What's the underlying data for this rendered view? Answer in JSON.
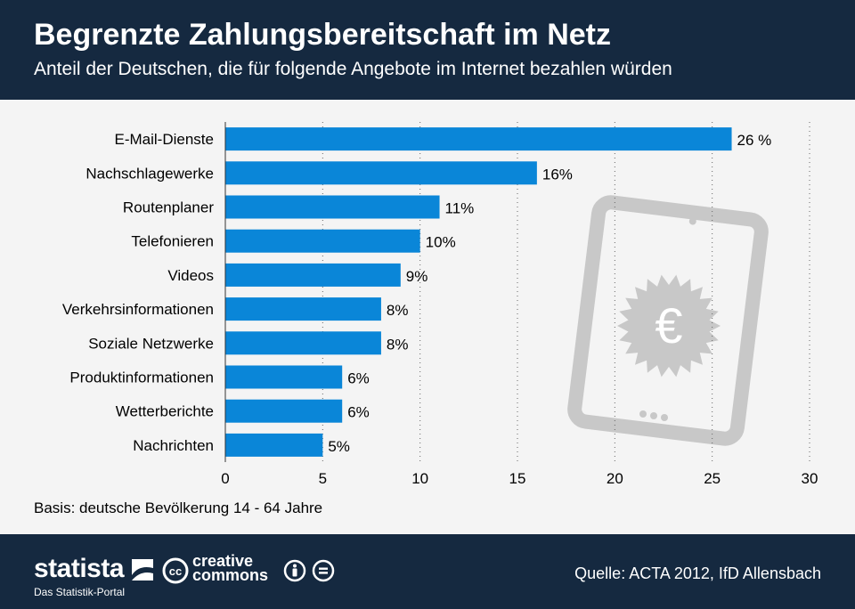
{
  "header": {
    "title": "Begrenzte Zahlungsbereitschaft im Netz",
    "subtitle": "Anteil der Deutschen, die für folgende Angebote im Internet bezahlen würden"
  },
  "chart_data": {
    "type": "bar",
    "orientation": "horizontal",
    "categories": [
      "E-Mail-Dienste",
      "Nachschlagewerke",
      "Routenplaner",
      "Telefonieren",
      "Videos",
      "Verkehrsinformationen",
      "Soziale Netzwerke",
      "Produktinformationen",
      "Wetterberichte",
      "Nachrichten"
    ],
    "values": [
      26,
      16,
      11,
      10,
      9,
      8,
      8,
      6,
      6,
      5
    ],
    "value_labels": [
      "26 %",
      "16%",
      "11%",
      "10%",
      "9%",
      "8%",
      "8%",
      "6%",
      "6%",
      "5%"
    ],
    "xlim": [
      0,
      30
    ],
    "xticks": [
      "0",
      "5",
      "10",
      "15",
      "20",
      "25",
      "30"
    ],
    "xtick_values": [
      0,
      5,
      10,
      15,
      20,
      25,
      30
    ],
    "grid": "vertical dotted",
    "bar_color": "#0a86d8",
    "title": "Begrenzte Zahlungsbereitschaft im Netz",
    "xlabel": "",
    "ylabel": ""
  },
  "note": "Basis: deutsche Bevölkerung 14 - 64 Jahre",
  "footer": {
    "brand": "statista",
    "portal": "Das Statistik-Portal",
    "cc_line1": "creative",
    "cc_line2": "commons",
    "source": "Quelle: ACTA 2012, IfD Allensbach"
  },
  "illustration": {
    "icon": "tablet-euro-icon",
    "symbol": "€"
  },
  "colors": {
    "header_bg": "#152940",
    "bar": "#0a86d8",
    "background": "#f4f4f4",
    "icon_gray": "#c8c8c8"
  }
}
